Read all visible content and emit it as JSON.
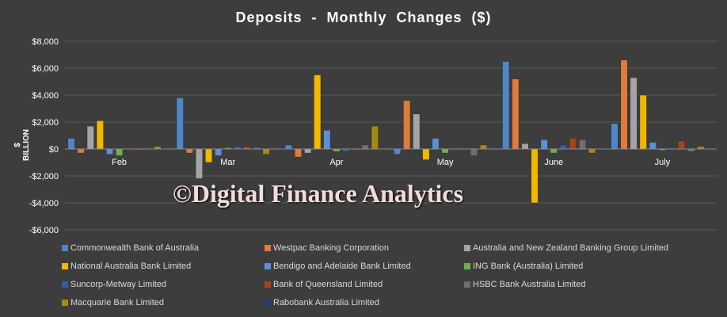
{
  "chart_data": {
    "type": "bar",
    "title": "Deposits  - Monthly  Changes  ($)",
    "ylabel": "$ BILLION",
    "xlabel": "",
    "ylim": [
      -6000,
      8000
    ],
    "yticks": [
      -6000,
      -4000,
      -2000,
      0,
      2000,
      4000,
      6000,
      8000
    ],
    "ytick_labels": [
      "-$6,000",
      "-$4,000",
      "-$2,000",
      "$0",
      "$2,000",
      "$4,000",
      "$6,000",
      "$8,000"
    ],
    "grid": true,
    "legend_position": "bottom",
    "categories": [
      "Feb",
      "Mar",
      "Apr",
      "May",
      "June",
      "July"
    ],
    "series": [
      {
        "name": "Commonwealth Bank of Australia",
        "color": "#4f86c6",
        "values": [
          800,
          3800,
          300,
          -400,
          6500,
          1900
        ]
      },
      {
        "name": "Westpac Banking Corporation",
        "color": "#e07b39",
        "values": [
          -300,
          -300,
          -600,
          3600,
          5200,
          6600
        ]
      },
      {
        "name": "Australia and New Zealand Banking Group Limited",
        "color": "#a5a5a5",
        "values": [
          1700,
          -2200,
          -300,
          2600,
          400,
          5300
        ]
      },
      {
        "name": "National Australia Bank Limited",
        "color": "#f0b800",
        "values": [
          2100,
          -1000,
          5500,
          -800,
          -4000,
          4000
        ]
      },
      {
        "name": "Bendigo and Adelaide Bank Limited",
        "color": "#5b8fd6",
        "values": [
          -400,
          -500,
          1400,
          800,
          700,
          500
        ]
      },
      {
        "name": "ING Bank (Australia) Limited",
        "color": "#6ab04c",
        "values": [
          -500,
          100,
          -200,
          -300,
          -300,
          -100
        ]
      },
      {
        "name": "Suncorp-Metway Limited",
        "color": "#2e5f9e",
        "values": [
          0,
          200,
          -200,
          0,
          300,
          100
        ]
      },
      {
        "name": "Bank of Queensland Limited",
        "color": "#a0461c",
        "values": [
          -100,
          200,
          -100,
          0,
          800,
          600
        ]
      },
      {
        "name": "HSBC Bank Australia Limited",
        "color": "#6f6f6f",
        "values": [
          0,
          100,
          300,
          -500,
          700,
          -200
        ]
      },
      {
        "name": "Macquarie Bank Limited",
        "color": "#a48a10",
        "values": [
          200,
          -400,
          1700,
          300,
          -300,
          200
        ]
      },
      {
        "name": "Rabobank Australia Limited",
        "color": "#1f3f73",
        "values": [
          0,
          0,
          0,
          0,
          -100,
          0
        ]
      }
    ]
  },
  "watermark": "©Digital Finance Analytics"
}
